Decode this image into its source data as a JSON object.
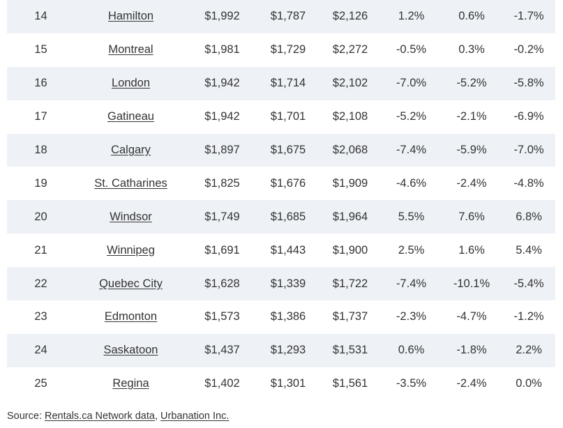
{
  "table": {
    "rows": [
      {
        "rank": "14",
        "city": "Hamilton",
        "total": "$1,992",
        "one_bed": "$1,787",
        "two_bed": "$2,126",
        "total_change": "1.2%",
        "one_bed_change": "0.6%",
        "two_bed_change": "-1.7%"
      },
      {
        "rank": "15",
        "city": "Montreal",
        "total": "$1,981",
        "one_bed": "$1,729",
        "two_bed": "$2,272",
        "total_change": "-0.5%",
        "one_bed_change": "0.3%",
        "two_bed_change": "-0.2%"
      },
      {
        "rank": "16",
        "city": "London",
        "total": "$1,942",
        "one_bed": "$1,714",
        "two_bed": "$2,102",
        "total_change": "-7.0%",
        "one_bed_change": "-5.2%",
        "two_bed_change": "-5.8%"
      },
      {
        "rank": "17",
        "city": "Gatineau",
        "total": "$1,942",
        "one_bed": "$1,701",
        "two_bed": "$2,108",
        "total_change": "-5.2%",
        "one_bed_change": "-2.1%",
        "two_bed_change": "-6.9%"
      },
      {
        "rank": "18",
        "city": "Calgary",
        "total": "$1,897",
        "one_bed": "$1,675",
        "two_bed": "$2,068",
        "total_change": "-7.4%",
        "one_bed_change": "-5.9%",
        "two_bed_change": "-7.0%"
      },
      {
        "rank": "19",
        "city": "St. Catharines",
        "total": "$1,825",
        "one_bed": "$1,676",
        "two_bed": "$1,909",
        "total_change": "-4.6%",
        "one_bed_change": "-2.4%",
        "two_bed_change": "-4.8%"
      },
      {
        "rank": "20",
        "city": "Windsor",
        "total": "$1,749",
        "one_bed": "$1,685",
        "two_bed": "$1,964",
        "total_change": "5.5%",
        "one_bed_change": "7.6%",
        "two_bed_change": "6.8%"
      },
      {
        "rank": "21",
        "city": "Winnipeg",
        "total": "$1,691",
        "one_bed": "$1,443",
        "two_bed": "$1,900",
        "total_change": "2.5%",
        "one_bed_change": "1.6%",
        "two_bed_change": "5.4%"
      },
      {
        "rank": "22",
        "city": "Quebec City",
        "total": "$1,628",
        "one_bed": "$1,339",
        "two_bed": "$1,722",
        "total_change": "-7.4%",
        "one_bed_change": "-10.1%",
        "two_bed_change": "-5.4%"
      },
      {
        "rank": "23",
        "city": "Edmonton",
        "total": "$1,573",
        "one_bed": "$1,386",
        "two_bed": "$1,737",
        "total_change": "-2.3%",
        "one_bed_change": "-4.7%",
        "two_bed_change": "-1.2%"
      },
      {
        "rank": "24",
        "city": "Saskatoon",
        "total": "$1,437",
        "one_bed": "$1,293",
        "two_bed": "$1,531",
        "total_change": "0.6%",
        "one_bed_change": "-1.8%",
        "two_bed_change": "2.2%"
      },
      {
        "rank": "25",
        "city": "Regina",
        "total": "$1,402",
        "one_bed": "$1,301",
        "two_bed": "$1,561",
        "total_change": "-3.5%",
        "one_bed_change": "-2.4%",
        "two_bed_change": "0.0%"
      }
    ]
  },
  "source": {
    "prefix": "Source: ",
    "link1": "Rentals.ca Network data",
    "separator": ", ",
    "link2": "Urbanation Inc."
  },
  "colors": {
    "stripe": "#eef2f7",
    "text": "#333333"
  }
}
